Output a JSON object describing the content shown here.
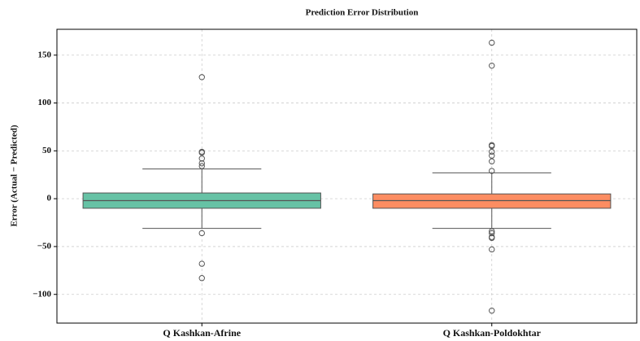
{
  "chart_data": {
    "type": "box",
    "title": "Prediction Error Distribution",
    "y_label": "Error (Actual − Predicted)",
    "categories": [
      "Q Kashkan-Afrine",
      "Q Kashkan-Poldokhtar"
    ],
    "colors": [
      "#66c2a5",
      "#fc8d62"
    ],
    "boxes": [
      {
        "whisker_low": -31,
        "q1": -10,
        "median": -2,
        "q3": 6,
        "whisker_high": 31,
        "outliers": [
          127,
          49,
          48,
          42,
          37,
          34,
          -36,
          -68,
          -83
        ]
      },
      {
        "whisker_low": -31,
        "q1": -10,
        "median": -2,
        "q3": 5,
        "whisker_high": 27,
        "outliers": [
          163,
          139,
          56,
          55,
          49,
          45,
          39,
          29,
          -34,
          -36,
          -40,
          -41,
          -53,
          -117
        ]
      }
    ],
    "ylim": [
      -130,
      177
    ],
    "yticks": [
      {
        "value": -100,
        "label": "−100"
      },
      {
        "value": -50,
        "label": "−50"
      },
      0,
      50,
      100,
      150
    ],
    "grid": true
  }
}
